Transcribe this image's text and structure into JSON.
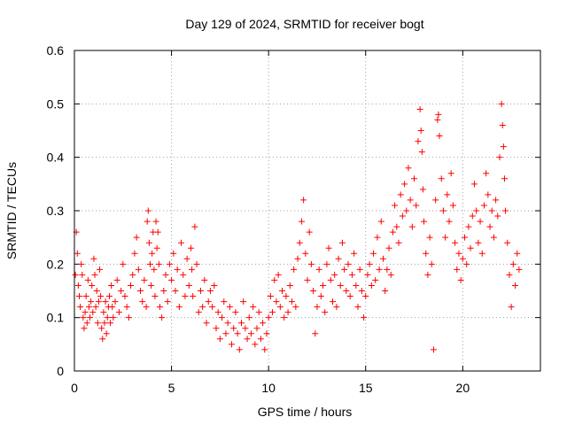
{
  "chart_data": {
    "type": "scatter",
    "title": "Day 129 of 2024, SRMTID for receiver bogt",
    "xlabel": "GPS time / hours",
    "ylabel": "SRMTID / TECUs",
    "xlim": [
      0,
      24
    ],
    "ylim": [
      0,
      0.6
    ],
    "xticks": [
      0,
      5,
      10,
      15,
      20
    ],
    "xtick_labels": [
      "0",
      "5",
      "10",
      "15",
      "20"
    ],
    "yticks": [
      0,
      0.1,
      0.2,
      0.3,
      0.4,
      0.5,
      0.6
    ],
    "ytick_labels": [
      "0",
      "0.1",
      "0.2",
      "0.3",
      "0.4",
      "0.5",
      "0.6"
    ],
    "grid": true,
    "marker": "+",
    "color": "#ff0000",
    "series": [
      {
        "name": "SRMTID",
        "points": [
          [
            0.05,
            0.18
          ],
          [
            0.1,
            0.26
          ],
          [
            0.15,
            0.22
          ],
          [
            0.2,
            0.16
          ],
          [
            0.25,
            0.14
          ],
          [
            0.3,
            0.12
          ],
          [
            0.35,
            0.2
          ],
          [
            0.4,
            0.18
          ],
          [
            0.45,
            0.1
          ],
          [
            0.5,
            0.08
          ],
          [
            0.55,
            0.11
          ],
          [
            0.6,
            0.14
          ],
          [
            0.65,
            0.09
          ],
          [
            0.7,
            0.17
          ],
          [
            0.75,
            0.12
          ],
          [
            0.8,
            0.1
          ],
          [
            0.85,
            0.13
          ],
          [
            0.9,
            0.16
          ],
          [
            0.95,
            0.11
          ],
          [
            1.0,
            0.21
          ],
          [
            1.05,
            0.18
          ],
          [
            1.1,
            0.12
          ],
          [
            1.15,
            0.15
          ],
          [
            1.2,
            0.09
          ],
          [
            1.25,
            0.13
          ],
          [
            1.3,
            0.19
          ],
          [
            1.35,
            0.14
          ],
          [
            1.4,
            0.08
          ],
          [
            1.45,
            0.06
          ],
          [
            1.5,
            0.11
          ],
          [
            1.55,
            0.09
          ],
          [
            1.6,
            0.13
          ],
          [
            1.65,
            0.07
          ],
          [
            1.7,
            0.1
          ],
          [
            1.75,
            0.12
          ],
          [
            1.8,
            0.14
          ],
          [
            1.85,
            0.09
          ],
          [
            1.9,
            0.16
          ],
          [
            1.95,
            0.12
          ],
          [
            2.0,
            0.1
          ],
          [
            2.1,
            0.13
          ],
          [
            2.2,
            0.17
          ],
          [
            2.3,
            0.11
          ],
          [
            2.4,
            0.15
          ],
          [
            2.5,
            0.2
          ],
          [
            2.6,
            0.14
          ],
          [
            2.7,
            0.12
          ],
          [
            2.8,
            0.1
          ],
          [
            2.9,
            0.16
          ],
          [
            3.0,
            0.18
          ],
          [
            3.1,
            0.22
          ],
          [
            3.2,
            0.25
          ],
          [
            3.3,
            0.19
          ],
          [
            3.4,
            0.15
          ],
          [
            3.5,
            0.13
          ],
          [
            3.6,
            0.17
          ],
          [
            3.7,
            0.12
          ],
          [
            3.75,
            0.28
          ],
          [
            3.8,
            0.3
          ],
          [
            3.85,
            0.24
          ],
          [
            3.9,
            0.2
          ],
          [
            3.95,
            0.16
          ],
          [
            4.0,
            0.22
          ],
          [
            4.05,
            0.26
          ],
          [
            4.1,
            0.19
          ],
          [
            4.15,
            0.14
          ],
          [
            4.2,
            0.28
          ],
          [
            4.25,
            0.23
          ],
          [
            4.3,
            0.26
          ],
          [
            4.35,
            0.2
          ],
          [
            4.4,
            0.12
          ],
          [
            4.5,
            0.1
          ],
          [
            4.6,
            0.15
          ],
          [
            4.7,
            0.18
          ],
          [
            4.8,
            0.13
          ],
          [
            4.9,
            0.2
          ],
          [
            5.0,
            0.17
          ],
          [
            5.1,
            0.22
          ],
          [
            5.2,
            0.15
          ],
          [
            5.3,
            0.19
          ],
          [
            5.4,
            0.12
          ],
          [
            5.5,
            0.24
          ],
          [
            5.6,
            0.18
          ],
          [
            5.7,
            0.14
          ],
          [
            5.8,
            0.21
          ],
          [
            5.9,
            0.16
          ],
          [
            6.0,
            0.23
          ],
          [
            6.05,
            0.19
          ],
          [
            6.1,
            0.14
          ],
          [
            6.2,
            0.27
          ],
          [
            6.3,
            0.2
          ],
          [
            6.4,
            0.11
          ],
          [
            6.5,
            0.15
          ],
          [
            6.6,
            0.12
          ],
          [
            6.7,
            0.17
          ],
          [
            6.8,
            0.09
          ],
          [
            6.9,
            0.13
          ],
          [
            7.0,
            0.15
          ],
          [
            7.1,
            0.12
          ],
          [
            7.2,
            0.16
          ],
          [
            7.3,
            0.08
          ],
          [
            7.4,
            0.11
          ],
          [
            7.5,
            0.06
          ],
          [
            7.6,
            0.1
          ],
          [
            7.7,
            0.13
          ],
          [
            7.8,
            0.07
          ],
          [
            7.9,
            0.09
          ],
          [
            8.0,
            0.12
          ],
          [
            8.1,
            0.05
          ],
          [
            8.2,
            0.08
          ],
          [
            8.3,
            0.11
          ],
          [
            8.4,
            0.07
          ],
          [
            8.5,
            0.04
          ],
          [
            8.6,
            0.09
          ],
          [
            8.7,
            0.13
          ],
          [
            8.8,
            0.08
          ],
          [
            8.9,
            0.06
          ],
          [
            9.0,
            0.1
          ],
          [
            9.1,
            0.07
          ],
          [
            9.2,
            0.12
          ],
          [
            9.3,
            0.05
          ],
          [
            9.4,
            0.08
          ],
          [
            9.5,
            0.11
          ],
          [
            9.6,
            0.06
          ],
          [
            9.7,
            0.09
          ],
          [
            9.8,
            0.04
          ],
          [
            9.9,
            0.07
          ],
          [
            10.0,
            0.1
          ],
          [
            10.1,
            0.14
          ],
          [
            10.2,
            0.11
          ],
          [
            10.3,
            0.17
          ],
          [
            10.4,
            0.13
          ],
          [
            10.5,
            0.18
          ],
          [
            10.6,
            0.12
          ],
          [
            10.7,
            0.15
          ],
          [
            10.8,
            0.1
          ],
          [
            10.9,
            0.14
          ],
          [
            11.0,
            0.11
          ],
          [
            11.1,
            0.16
          ],
          [
            11.2,
            0.13
          ],
          [
            11.3,
            0.19
          ],
          [
            11.4,
            0.12
          ],
          [
            11.5,
            0.21
          ],
          [
            11.6,
            0.24
          ],
          [
            11.7,
            0.28
          ],
          [
            11.8,
            0.32
          ],
          [
            11.9,
            0.22
          ],
          [
            12.0,
            0.17
          ],
          [
            12.1,
            0.26
          ],
          [
            12.2,
            0.2
          ],
          [
            12.3,
            0.15
          ],
          [
            12.4,
            0.07
          ],
          [
            12.5,
            0.12
          ],
          [
            12.6,
            0.19
          ],
          [
            12.7,
            0.14
          ],
          [
            12.8,
            0.16
          ],
          [
            12.9,
            0.11
          ],
          [
            13.0,
            0.2
          ],
          [
            13.1,
            0.23
          ],
          [
            13.2,
            0.17
          ],
          [
            13.3,
            0.13
          ],
          [
            13.4,
            0.18
          ],
          [
            13.5,
            0.12
          ],
          [
            13.6,
            0.21
          ],
          [
            13.7,
            0.16
          ],
          [
            13.8,
            0.24
          ],
          [
            13.9,
            0.19
          ],
          [
            14.0,
            0.15
          ],
          [
            14.1,
            0.2
          ],
          [
            14.2,
            0.14
          ],
          [
            14.3,
            0.18
          ],
          [
            14.4,
            0.22
          ],
          [
            14.5,
            0.16
          ],
          [
            14.6,
            0.12
          ],
          [
            14.7,
            0.19
          ],
          [
            14.8,
            0.15
          ],
          [
            14.9,
            0.1
          ],
          [
            15.0,
            0.14
          ],
          [
            15.1,
            0.18
          ],
          [
            15.2,
            0.2
          ],
          [
            15.3,
            0.16
          ],
          [
            15.4,
            0.22
          ],
          [
            15.5,
            0.17
          ],
          [
            15.6,
            0.25
          ],
          [
            15.7,
            0.19
          ],
          [
            15.8,
            0.28
          ],
          [
            15.9,
            0.21
          ],
          [
            16.0,
            0.15
          ],
          [
            16.1,
            0.19
          ],
          [
            16.2,
            0.23
          ],
          [
            16.3,
            0.18
          ],
          [
            16.4,
            0.26
          ],
          [
            16.5,
            0.31
          ],
          [
            16.6,
            0.27
          ],
          [
            16.7,
            0.24
          ],
          [
            16.8,
            0.33
          ],
          [
            16.9,
            0.29
          ],
          [
            17.0,
            0.35
          ],
          [
            17.1,
            0.3
          ],
          [
            17.2,
            0.38
          ],
          [
            17.3,
            0.32
          ],
          [
            17.4,
            0.27
          ],
          [
            17.5,
            0.36
          ],
          [
            17.6,
            0.31
          ],
          [
            17.7,
            0.43
          ],
          [
            17.8,
            0.49
          ],
          [
            17.85,
            0.45
          ],
          [
            17.9,
            0.41
          ],
          [
            17.95,
            0.34
          ],
          [
            18.0,
            0.28
          ],
          [
            18.1,
            0.22
          ],
          [
            18.2,
            0.18
          ],
          [
            18.3,
            0.25
          ],
          [
            18.4,
            0.2
          ],
          [
            18.5,
            0.04
          ],
          [
            18.6,
            0.32
          ],
          [
            18.7,
            0.47
          ],
          [
            18.75,
            0.48
          ],
          [
            18.8,
            0.44
          ],
          [
            18.9,
            0.36
          ],
          [
            19.0,
            0.3
          ],
          [
            19.1,
            0.25
          ],
          [
            19.2,
            0.33
          ],
          [
            19.3,
            0.28
          ],
          [
            19.4,
            0.37
          ],
          [
            19.5,
            0.31
          ],
          [
            19.6,
            0.24
          ],
          [
            19.7,
            0.19
          ],
          [
            19.8,
            0.22
          ],
          [
            19.9,
            0.17
          ],
          [
            20.0,
            0.21
          ],
          [
            20.1,
            0.25
          ],
          [
            20.2,
            0.2
          ],
          [
            20.3,
            0.27
          ],
          [
            20.4,
            0.23
          ],
          [
            20.5,
            0.29
          ],
          [
            20.6,
            0.35
          ],
          [
            20.7,
            0.3
          ],
          [
            20.8,
            0.24
          ],
          [
            20.9,
            0.28
          ],
          [
            21.0,
            0.22
          ],
          [
            21.1,
            0.31
          ],
          [
            21.2,
            0.37
          ],
          [
            21.3,
            0.33
          ],
          [
            21.4,
            0.27
          ],
          [
            21.5,
            0.3
          ],
          [
            21.6,
            0.25
          ],
          [
            21.7,
            0.32
          ],
          [
            21.8,
            0.29
          ],
          [
            21.9,
            0.4
          ],
          [
            22.0,
            0.5
          ],
          [
            22.05,
            0.46
          ],
          [
            22.1,
            0.42
          ],
          [
            22.15,
            0.36
          ],
          [
            22.2,
            0.3
          ],
          [
            22.3,
            0.24
          ],
          [
            22.4,
            0.18
          ],
          [
            22.5,
            0.12
          ],
          [
            22.6,
            0.2
          ],
          [
            22.7,
            0.16
          ],
          [
            22.8,
            0.22
          ],
          [
            22.9,
            0.19
          ]
        ]
      }
    ]
  }
}
